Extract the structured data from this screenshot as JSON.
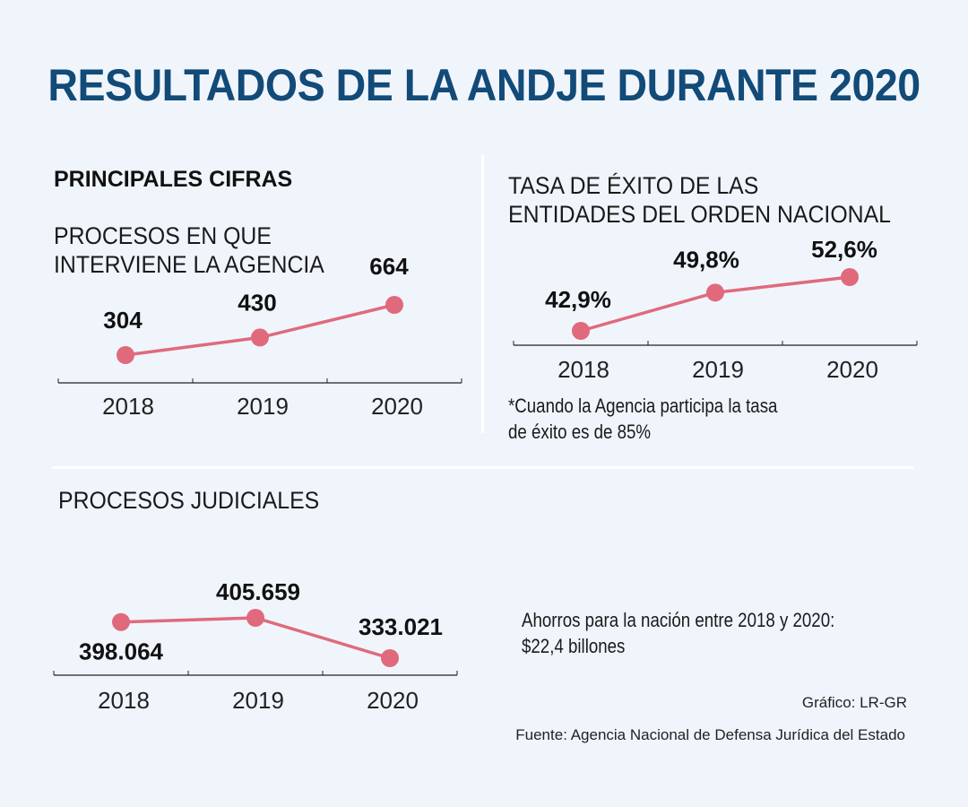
{
  "title": "RESULTADOS DE LA ANDJE DURANTE 2020",
  "principales": {
    "section_title": "PRINCIPALES CIFRAS",
    "subtitle_line1": "PROCESOS EN QUE",
    "subtitle_line2": "INTERVIENE LA AGENCIA"
  },
  "tasa": {
    "subtitle_line1": "TASA DE ÉXITO DE LAS",
    "subtitle_line2": "ENTIDADES DEL ORDEN NACIONAL",
    "note_line1": "*Cuando la Agencia participa la tasa",
    "note_line2": "de éxito es de 85%"
  },
  "judiciales": {
    "subtitle": "PROCESOS JUDICIALES",
    "savings_line1": "Ahorros para la nación entre 2018 y 2020:",
    "savings_line2": "$22,4 billones"
  },
  "credits": {
    "graphic": "Gráfico: LR-GR",
    "source": "Fuente: Agencia Nacional de Defensa Jurídica del Estado"
  },
  "colors": {
    "title": "#124a78",
    "line": "#e06a7c",
    "background": "#f0f5fc"
  },
  "chart_data": [
    {
      "type": "line",
      "title": "PROCESOS EN QUE INTERVIENE LA AGENCIA",
      "categories": [
        "2018",
        "2019",
        "2020"
      ],
      "values": [
        304,
        430,
        664
      ],
      "labels": [
        "304",
        "430",
        "664"
      ],
      "ylim": [
        200,
        700
      ],
      "grid": false
    },
    {
      "type": "line",
      "title": "TASA DE ÉXITO DE LAS ENTIDADES DEL ORDEN NACIONAL",
      "categories": [
        "2018",
        "2019",
        "2020"
      ],
      "values": [
        42.9,
        49.8,
        52.6
      ],
      "labels": [
        "42,9%",
        "49,8%",
        "52,6%"
      ],
      "ylim": [
        40,
        55
      ],
      "grid": false
    },
    {
      "type": "line",
      "title": "PROCESOS JUDICIALES",
      "categories": [
        "2018",
        "2019",
        "2020"
      ],
      "values": [
        398064,
        405659,
        333021
      ],
      "labels": [
        "398.064",
        "405.659",
        "333.021"
      ],
      "ylim": [
        310000,
        420000
      ],
      "grid": false
    }
  ]
}
